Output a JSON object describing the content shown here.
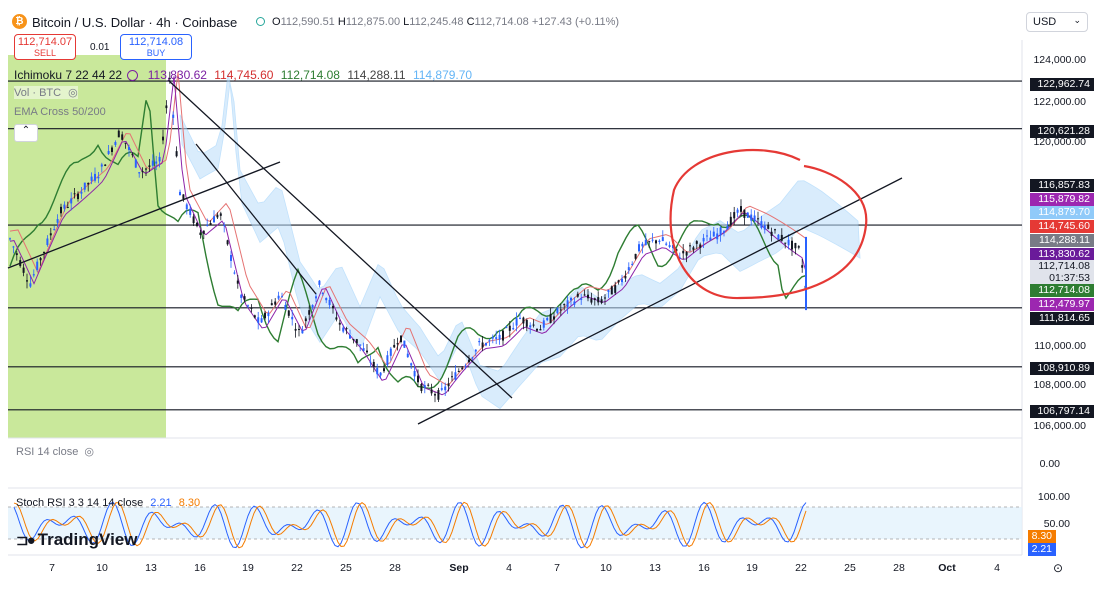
{
  "header": {
    "symbol_title": "Bitcoin / U.S. Dollar · 4h · Coinbase",
    "ohlc": {
      "o_label": "O",
      "o": "112,590.51",
      "h_label": "H",
      "h": "112,875.00",
      "l_label": "L",
      "l": "112,245.48",
      "c_label": "C",
      "c": "112,714.08",
      "change": "+127.43 (+0.11%)"
    },
    "currency": "USD"
  },
  "trade": {
    "sell_price": "112,714.07",
    "sell_label": "SELL",
    "spread": "0.01",
    "buy_price": "112,714.08",
    "buy_label": "BUY"
  },
  "indicators": {
    "ichimoku_label": "Ichimoku 7 22 44 22",
    "ichimoku_values": [
      "113,830.62",
      "114,745.60",
      "112,714.08",
      "114,288.11",
      "114,879.70"
    ],
    "ichimoku_colors": [
      "#7b1fa2",
      "#d32f2f",
      "#2e7d32",
      "#444444",
      "#90caf9"
    ],
    "vol_label": "Vol · BTC",
    "ema_label": "EMA Cross 50/200",
    "rsi_label": "RSI 14 close",
    "rsi_value": "0.00",
    "stoch_label": "Stoch RSI 3 3 14 14 close",
    "stoch_k": "2.21",
    "stoch_d": "8.30"
  },
  "price_axis": {
    "ticks": [
      "124,000.00",
      "122,000.00",
      "120,000.00",
      "110,000.00",
      "108,000.00",
      "106,000.00"
    ],
    "highlighted": [
      {
        "label": "122,962.74",
        "color": "#131722"
      },
      {
        "label": "120,621.28",
        "color": "#131722"
      },
      {
        "label": "116,857.83",
        "color": "#131722"
      },
      {
        "label": "115,879.82",
        "color": "#9c27b0"
      },
      {
        "label": "114,879.70",
        "color": "#90caf9"
      },
      {
        "label": "114,745.60",
        "color": "#e53935"
      },
      {
        "label": "114,288.11",
        "color": "#787b86"
      },
      {
        "label": "113,830.62",
        "color": "#6a1b9a"
      },
      {
        "label": "112,714.08",
        "color": "#e0e3eb"
      },
      {
        "label": "01:37:53",
        "color": "#e0e3eb"
      },
      {
        "label": "112,714.08",
        "color": "#2e7d32"
      },
      {
        "label": "112,479.97",
        "color": "#9c27b0"
      },
      {
        "label": "111,814.65",
        "color": "#131722"
      },
      {
        "label": "108,910.89",
        "color": "#131722"
      },
      {
        "label": "106,797.14",
        "color": "#131722"
      }
    ]
  },
  "stoch_axis": {
    "ticks": [
      "100.00",
      "50.00"
    ],
    "d_box": "8.30",
    "k_box": "2.21"
  },
  "time_axis": [
    "7",
    "10",
    "13",
    "16",
    "19",
    "22",
    "25",
    "28",
    "Sep",
    "4",
    "7",
    "10",
    "13",
    "16",
    "19",
    "22",
    "25",
    "28",
    "Oct",
    "4"
  ],
  "watermark": "TradingView",
  "colors": {
    "up": "#2962ff",
    "down": "#131722",
    "green_zone": "#b7e07a",
    "circle": "#e53935"
  },
  "chart_data": {
    "type": "line",
    "horizontal_levels": [
      122962.74,
      120621.28,
      115879.82,
      111814.65,
      108910.89,
      106797.14
    ]
  }
}
